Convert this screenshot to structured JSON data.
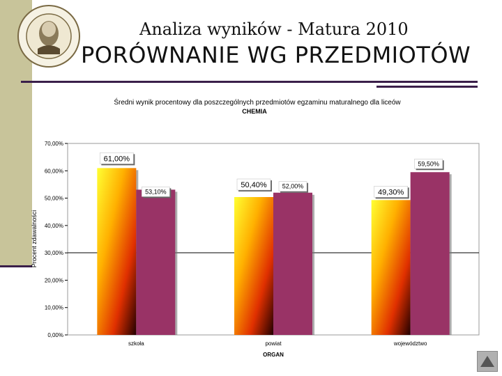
{
  "slide": {
    "title": "Analiza wyników  - Matura 2010",
    "heading": "PORÓWNANIE WG PRZEDMIOTÓW"
  },
  "chart_data": {
    "type": "bar",
    "title": "Średni wynik procentowy dla poszczególnych przedmiotów egzaminu maturalnego dla liceów",
    "subtitle": "CHEMIA",
    "categories": [
      "szkoła",
      "powiat",
      "województwo"
    ],
    "series": [
      {
        "values": [
          61.0,
          50.4,
          49.3
        ],
        "labels": [
          "61,00%",
          "50,40%",
          "49,30%"
        ],
        "color": "#ff9900"
      },
      {
        "values": [
          53.1,
          52.0,
          59.5
        ],
        "labels": [
          "53,10%",
          "52,00%",
          "59,50%"
        ],
        "color": "#993366"
      }
    ],
    "xlabel": "ORGAN",
    "ylabel": "Procent zdawalności",
    "ylim": [
      0,
      70
    ],
    "yticks": [
      0,
      10,
      20,
      30,
      40,
      50,
      60,
      70
    ],
    "ytick_labels": [
      "0,00%",
      "10,00%",
      "20,00%",
      "30,00%",
      "40,00%",
      "50,00%",
      "60,00%",
      "70,00%"
    ],
    "grid": "single line at 30%"
  }
}
